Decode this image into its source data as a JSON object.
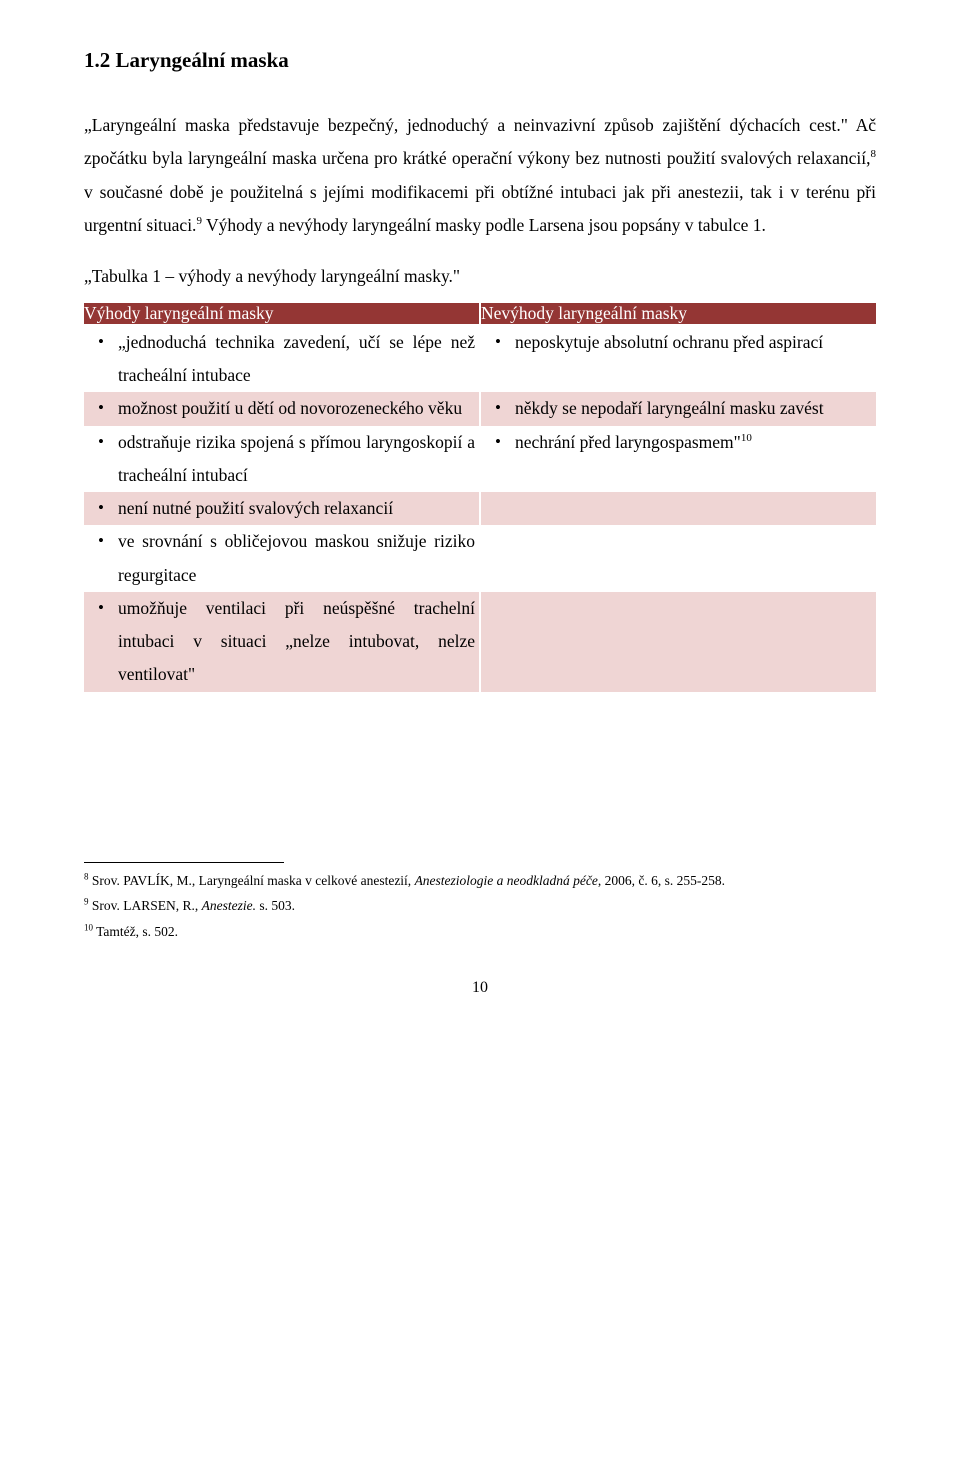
{
  "heading": "1.2 Laryngeální maska",
  "para1_open": "„Laryngeální maska představuje bezpečný, jednoduchý a neinvazivní způsob zajištění dýchacích cest.\" Ač zpočátku byla laryngeální maska určena pro krátké operační výkony bez nutnosti použití svalových relaxancií,",
  "para1_sup1": "8",
  "para1_mid": " v současné době je použitelná s jejími modifikacemi při obtížné intubaci jak při anestezii, tak i v terénu při urgentní situaci.",
  "para1_sup2": "9",
  "para1_close": " Výhody a nevýhody laryngeální masky podle Larsena jsou popsány v tabulce 1.",
  "table_caption": "„Tabulka 1 – výhody a nevýhody laryngeální masky.\"",
  "table": {
    "header_left": "Výhody laryngeální masky",
    "header_right": "Nevýhody laryngeální masky",
    "rows": [
      {
        "left": "„jednoduchá technika zavedení, učí se lépe než tracheální intubace",
        "right": "neposkytuje absolutní ochranu před aspirací",
        "bg": "white"
      },
      {
        "left": "možnost použití u dětí od novorozeneckého věku",
        "right": "někdy se nepodaří laryngeální masku zavést",
        "bg": "pink"
      },
      {
        "left": "odstraňuje rizika spojená s přímou laryngoskopií a tracheální intubací",
        "right_pre": "nechrání před laryngospasmem\"",
        "right_sup": "10",
        "bg": "white"
      },
      {
        "left": "není nutné použití svalových relaxancií",
        "right": "",
        "bg": "pink"
      },
      {
        "left": "ve srovnání s obličejovou maskou snižuje riziko regurgitace",
        "right": "",
        "bg": "white"
      },
      {
        "left": "umožňuje ventilaci při neúspěšné trachelní intubaci v situaci „nelze intubovat, nelze ventilovat\"",
        "right": "",
        "bg": "pink"
      }
    ]
  },
  "footnotes": {
    "f8_sup": "8",
    "f8_pre": " Srov. PAVLÍK, M., Laryngeální maska v celkové anestezií, ",
    "f8_ital": "Anesteziologie a neodkladná péče",
    "f8_post": ", 2006, č. 6, s. 255-258.",
    "f9_sup": "9",
    "f9_pre": "  Srov. LARSEN, R., ",
    "f9_ital": "Anestezie.",
    "f9_post": " s. 503.",
    "f10_sup": "10",
    "f10_text": " Tamtéž, s. 502."
  },
  "pagenum": "10",
  "bullet": "•"
}
